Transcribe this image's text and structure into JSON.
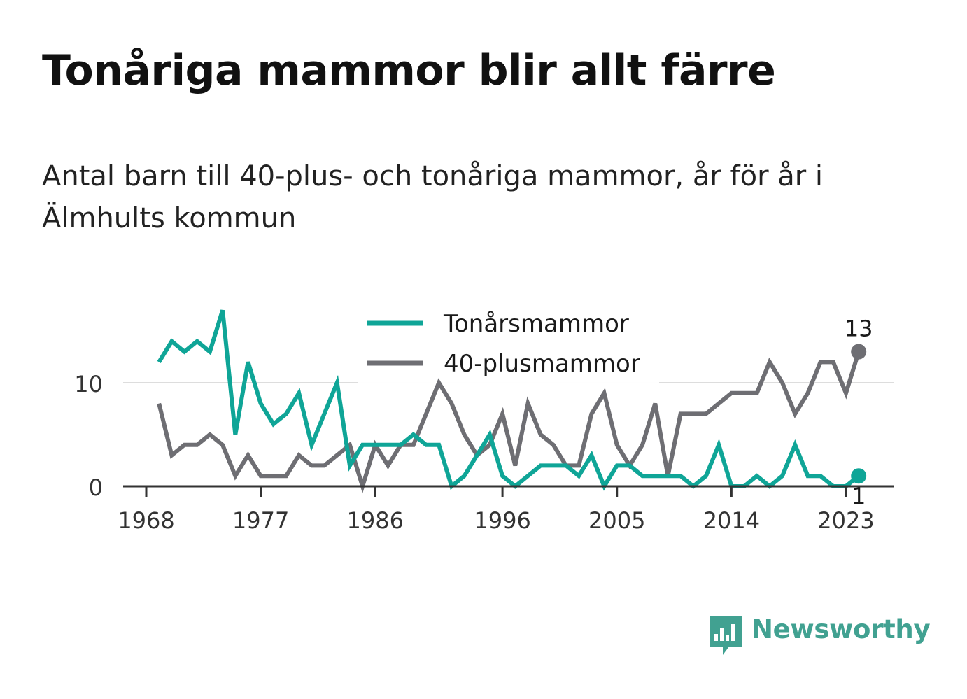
{
  "title": "Tonåriga mammor blir allt färre",
  "subtitle": "Antal barn till 40-plus- och tonåriga mammor, år för år i Älmhults kommun",
  "logo": {
    "text": "Newsworthy",
    "icon": "newsworthy-logo-icon",
    "color": "#41a191"
  },
  "chart_data": {
    "type": "line",
    "title": "",
    "xlabel": "",
    "ylabel": "",
    "xlim": [
      1968,
      2024
    ],
    "ylim": [
      0,
      18
    ],
    "y_ticks": [
      0,
      10
    ],
    "x_ticks": [
      1968,
      1977,
      1986,
      1996,
      2005,
      2014,
      2023
    ],
    "grid": "horizontal",
    "legend_position": "top-center",
    "x": [
      1969,
      1970,
      1971,
      1972,
      1973,
      1974,
      1975,
      1976,
      1977,
      1978,
      1979,
      1980,
      1981,
      1982,
      1983,
      1984,
      1985,
      1986,
      1987,
      1988,
      1989,
      1990,
      1991,
      1992,
      1993,
      1994,
      1995,
      1996,
      1997,
      1998,
      1999,
      2000,
      2001,
      2002,
      2003,
      2004,
      2005,
      2006,
      2007,
      2008,
      2009,
      2010,
      2011,
      2012,
      2013,
      2014,
      2015,
      2016,
      2017,
      2018,
      2019,
      2020,
      2021,
      2022,
      2023,
      2024
    ],
    "series": [
      {
        "name": "Tonårsmammor",
        "color": "#0fa597",
        "end_label": "1",
        "values": [
          12,
          14,
          13,
          14,
          13,
          17,
          5,
          12,
          8,
          6,
          7,
          9,
          4,
          7,
          10,
          2,
          4,
          4,
          4,
          4,
          5,
          4,
          4,
          0,
          1,
          3,
          5,
          1,
          0,
          1,
          2,
          2,
          2,
          1,
          3,
          0,
          2,
          2,
          1,
          1,
          1,
          1,
          0,
          1,
          4,
          0,
          0,
          1,
          0,
          1,
          4,
          1,
          1,
          0,
          0,
          1
        ]
      },
      {
        "name": "40-plusmammor",
        "color": "#6e6e73",
        "end_label": "13",
        "values": [
          8,
          3,
          4,
          4,
          5,
          4,
          1,
          3,
          1,
          1,
          1,
          3,
          2,
          2,
          3,
          4,
          0,
          4,
          2,
          4,
          4,
          7,
          10,
          8,
          5,
          3,
          4,
          7,
          2,
          8,
          5,
          4,
          2,
          2,
          7,
          9,
          4,
          2,
          4,
          8,
          1,
          7,
          7,
          7,
          8,
          9,
          9,
          9,
          12,
          10,
          7,
          9,
          12,
          12,
          9,
          13
        ]
      }
    ]
  }
}
